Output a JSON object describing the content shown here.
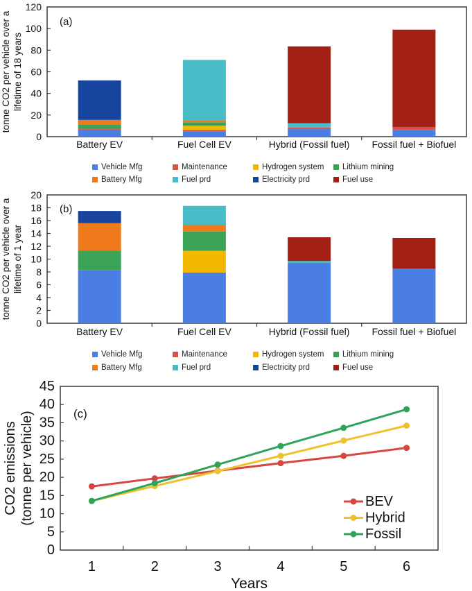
{
  "figure": {
    "description_labels": {
      "panel_a": "(a)",
      "panel_b": "(b)",
      "panel_c": "(c)"
    }
  },
  "colors": {
    "axis": "#3a3a3a",
    "text": "#111111",
    "background": "#ffffff"
  },
  "series_colors": {
    "Vehicle Mfg": "#4A7EE3",
    "Maintenance": "#D4554A",
    "Hydrogen system": "#F3B700",
    "Lithium mining": "#3AA356",
    "Battery Mfg": "#EF7A1C",
    "Fuel prd": "#48BCC6",
    "Electricity prd": "#17449F",
    "Fuel use": "#A32014"
  },
  "bar_legend_rows": [
    [
      "Vehicle Mfg",
      "Maintenance",
      "Hydrogen system",
      "Lithium mining"
    ],
    [
      "Battery Mfg",
      "Fuel prd",
      "Electricity prd",
      "Fuel use"
    ]
  ],
  "chart_data": [
    {
      "id": "a",
      "type": "bar",
      "stacked": true,
      "panel_label": "(a)",
      "ylabel_lines": [
        "tonne CO2 per vehicle over a",
        "lifetime of 18 years"
      ],
      "ylim": [
        0,
        120
      ],
      "ytick_step": 20,
      "grid": false,
      "legend_position": "below",
      "categories": [
        "Battery EV",
        "Fuel Cell EV",
        "Hybrid (Fossil fuel)",
        "Fossil fuel + Biofuel"
      ],
      "series": [
        {
          "name": "Vehicle Mfg",
          "values": [
            6.5,
            5.0,
            7.0,
            6.0
          ]
        },
        {
          "name": "Maintenance",
          "values": [
            1.2,
            1.3,
            1.5,
            3.0
          ]
        },
        {
          "name": "Hydrogen system",
          "values": [
            0,
            3.8,
            0,
            0
          ]
        },
        {
          "name": "Lithium mining",
          "values": [
            3.2,
            3.2,
            0,
            0
          ]
        },
        {
          "name": "Battery Mfg",
          "values": [
            4.6,
            1.9,
            0,
            0
          ]
        },
        {
          "name": "Fuel prd",
          "values": [
            0,
            55.8,
            4.0,
            0
          ]
        },
        {
          "name": "Electricity prd",
          "values": [
            36.5,
            0,
            0,
            0
          ]
        },
        {
          "name": "Fuel use",
          "values": [
            0,
            0,
            71.0,
            90.0
          ]
        }
      ],
      "totals": [
        52,
        71,
        83.5,
        99
      ]
    },
    {
      "id": "b",
      "type": "bar",
      "stacked": true,
      "panel_label": "(b)",
      "ylabel_lines": [
        "tonne CO2 per vehicle over a",
        "lifetime of 1 year"
      ],
      "ylim": [
        0,
        20
      ],
      "ytick_step": 2,
      "grid": false,
      "legend_position": "below",
      "categories": [
        "Battery EV",
        "Fuel Cell EV",
        "Hybrid (Fossil fuel)",
        "Fossil fuel + Biofuel"
      ],
      "series": [
        {
          "name": "Vehicle Mfg",
          "values": [
            8.3,
            7.9,
            9.4,
            8.5
          ]
        },
        {
          "name": "Maintenance",
          "values": [
            0,
            0,
            0,
            0
          ]
        },
        {
          "name": "Hydrogen system",
          "values": [
            0,
            3.4,
            0,
            0
          ]
        },
        {
          "name": "Lithium mining",
          "values": [
            3.0,
            3.0,
            0,
            0
          ]
        },
        {
          "name": "Battery Mfg",
          "values": [
            4.3,
            1.0,
            0,
            0
          ]
        },
        {
          "name": "Fuel prd",
          "values": [
            0,
            3.0,
            0.3,
            0
          ]
        },
        {
          "name": "Electricity prd",
          "values": [
            1.9,
            0,
            0,
            0
          ]
        },
        {
          "name": "Fuel use",
          "values": [
            0,
            0,
            3.7,
            4.8
          ]
        }
      ],
      "totals": [
        17.5,
        18.3,
        13.4,
        13.3
      ]
    },
    {
      "id": "c",
      "type": "line",
      "panel_label": "(c)",
      "xlabel": "Years",
      "ylabel_lines": [
        "CO2 emissions",
        "(tonne per vehicle)"
      ],
      "ylim": [
        0,
        45
      ],
      "ytick_step": 5,
      "grid": false,
      "legend_position": "inside-right",
      "x": [
        1,
        2,
        3,
        4,
        5,
        6
      ],
      "series": [
        {
          "name": "BEV",
          "color": "#D8473D",
          "values": [
            17.5,
            19.7,
            21.8,
            23.9,
            25.9,
            28.1
          ]
        },
        {
          "name": "Hybrid",
          "color": "#EDC230",
          "values": [
            13.5,
            17.6,
            21.7,
            25.9,
            30.1,
            34.2
          ]
        },
        {
          "name": "Fossil",
          "color": "#2FA45A",
          "values": [
            13.5,
            18.4,
            23.5,
            28.6,
            33.6,
            38.7
          ]
        }
      ],
      "legend": [
        "BEV",
        "Hybrid",
        "Fossil"
      ]
    }
  ]
}
